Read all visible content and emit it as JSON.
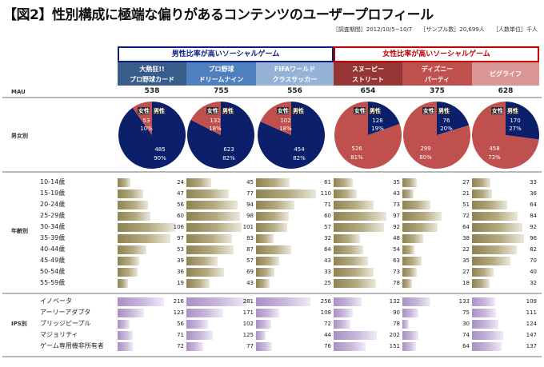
{
  "title": "【図2】性別構成に極端な偏りがあるコンテンツのユーザープロフィール",
  "meta": {
    "period": "［調査期間］2012/10/5~10/7",
    "sample": "［サンプル数］20,699人",
    "unit": "［人数単位］千人"
  },
  "groups": {
    "male": "男性比率が高いソーシャルゲーム",
    "female": "女性比率が高いソーシャルゲーム"
  },
  "row_labels": {
    "mau": "MAU",
    "gender": "男女別",
    "age": "年齢別",
    "ips": "IPS別"
  },
  "colors": {
    "male_pie": "#0c1f6b",
    "female_pie": "#c0504d",
    "male_group": "#0c1e80",
    "female_group": "#c00000"
  },
  "chart_data": {
    "type": "table",
    "title": "性別構成に極端な偏りがあるコンテンツのユーザープロフィール",
    "unit": "千人",
    "columns": [
      {
        "name_line1": "大熱狂!!",
        "name_line2": "プロ野球カード",
        "group": "male",
        "header_color": "#385d8a",
        "mau": 538,
        "female": 53,
        "female_pct": "10%",
        "male": 485,
        "male_pct": "90%"
      },
      {
        "name_line1": "プロ野球",
        "name_line2": "ドリームナイン",
        "group": "male",
        "header_color": "#4f7fbd",
        "mau": 755,
        "female": 132,
        "female_pct": "18%",
        "male": 623,
        "male_pct": "82%"
      },
      {
        "name_line1": "FIFAワールド",
        "name_line2": "クラスサッカー",
        "group": "male",
        "header_color": "#95b3d7",
        "mau": 556,
        "female": 102,
        "female_pct": "18%",
        "male": 454,
        "male_pct": "82%"
      },
      {
        "name_line1": "スヌーピー",
        "name_line2": "ストリート",
        "group": "female",
        "header_color": "#963634",
        "mau": 654,
        "female": 526,
        "female_pct": "81%",
        "male": 128,
        "male_pct": "19%"
      },
      {
        "name_line1": "ディズニー",
        "name_line2": "パーティ",
        "group": "female",
        "header_color": "#c0504d",
        "mau": 375,
        "female": 299,
        "female_pct": "80%",
        "male": 76,
        "male_pct": "20%"
      },
      {
        "name_line1": "ピグライフ",
        "name_line2": "",
        "group": "female",
        "header_color": "#da9694",
        "mau": 628,
        "female": 458,
        "female_pct": "73%",
        "male": 170,
        "male_pct": "27%"
      }
    ],
    "pie_labels": {
      "female": "女性",
      "male": "男性"
    },
    "age_groups": [
      "10-14歳",
      "15-19歳",
      "20-24歳",
      "25-29歳",
      "30-34歳",
      "35-39歳",
      "40-44歳",
      "45-49歳",
      "50-54歳",
      "55-59歳"
    ],
    "age_values": [
      [
        24,
        47,
        56,
        60,
        106,
        97,
        53,
        39,
        36,
        19
      ],
      [
        45,
        77,
        94,
        98,
        101,
        83,
        87,
        57,
        69,
        43
      ],
      [
        61,
        110,
        71,
        60,
        57,
        32,
        64,
        43,
        33,
        25
      ],
      [
        35,
        43,
        73,
        97,
        92,
        48,
        54,
        63,
        73,
        78
      ],
      [
        27,
        21,
        51,
        72,
        64,
        38,
        22,
        35,
        27,
        18
      ],
      [
        33,
        36,
        64,
        84,
        92,
        96,
        82,
        70,
        40,
        32
      ]
    ],
    "ips_groups": [
      "イノベータ",
      "アーリーアダプタ",
      "ブリッジピープル",
      "マジョリティ",
      "ゲーム専用機非所有者"
    ],
    "ips_values": [
      [
        216,
        123,
        56,
        71,
        72
      ],
      [
        281,
        171,
        102,
        125,
        77
      ],
      [
        256,
        108,
        72,
        44,
        76
      ],
      [
        132,
        90,
        78,
        202,
        151
      ],
      [
        133,
        75,
        30,
        74,
        64
      ],
      [
        109,
        111,
        124,
        147,
        137
      ]
    ]
  }
}
